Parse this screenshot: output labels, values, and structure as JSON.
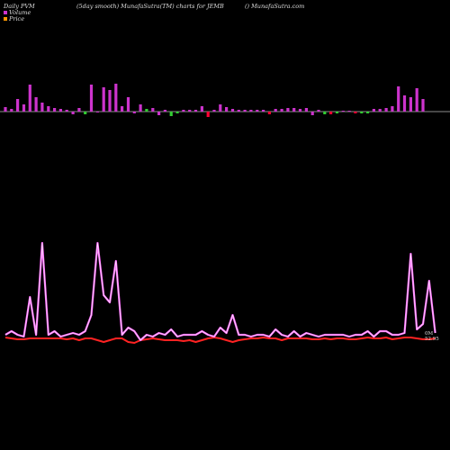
{
  "header": {
    "left": "Daily PVM",
    "middle": "(5day smooth) MunafaSutra(TM) charts for JEMB",
    "right": "() MunafaSutra.com"
  },
  "legend": {
    "volume": "Volume",
    "price": "Price"
  },
  "colors": {
    "background": "#000000",
    "volume_bar": "#cc33cc",
    "negative_bar": "#ff0033",
    "green_bar": "#33cc33",
    "pvm_line": "#ff66ff",
    "price_line": "#ff2222",
    "baseline": "#bbbbbb"
  },
  "chart_data": {
    "type": "bar+line",
    "bars": [
      {
        "v": 5,
        "c": "m"
      },
      {
        "v": 3,
        "c": "m"
      },
      {
        "v": 14,
        "c": "m"
      },
      {
        "v": 8,
        "c": "m"
      },
      {
        "v": 30,
        "c": "m"
      },
      {
        "v": 16,
        "c": "m"
      },
      {
        "v": 10,
        "c": "m"
      },
      {
        "v": 6,
        "c": "m"
      },
      {
        "v": 4,
        "c": "m"
      },
      {
        "v": 3,
        "c": "m"
      },
      {
        "v": 2,
        "c": "m"
      },
      {
        "v": -3,
        "c": "m"
      },
      {
        "v": 4,
        "c": "m"
      },
      {
        "v": -3,
        "c": "g"
      },
      {
        "v": 30,
        "c": "m"
      },
      {
        "v": -1,
        "c": "m"
      },
      {
        "v": 27,
        "c": "m"
      },
      {
        "v": 24,
        "c": "m"
      },
      {
        "v": 31,
        "c": "m"
      },
      {
        "v": 6,
        "c": "m"
      },
      {
        "v": 16,
        "c": "m"
      },
      {
        "v": -2,
        "c": "m"
      },
      {
        "v": 8,
        "c": "m"
      },
      {
        "v": 3,
        "c": "g"
      },
      {
        "v": 4,
        "c": "m"
      },
      {
        "v": -4,
        "c": "m"
      },
      {
        "v": 2,
        "c": "m"
      },
      {
        "v": -5,
        "c": "g"
      },
      {
        "v": -2,
        "c": "g"
      },
      {
        "v": 2,
        "c": "m"
      },
      {
        "v": 2,
        "c": "m"
      },
      {
        "v": 2,
        "c": "m"
      },
      {
        "v": 6,
        "c": "m"
      },
      {
        "v": -6,
        "c": "r"
      },
      {
        "v": 2,
        "c": "m"
      },
      {
        "v": 8,
        "c": "m"
      },
      {
        "v": 5,
        "c": "m"
      },
      {
        "v": 3,
        "c": "m"
      },
      {
        "v": 2,
        "c": "m"
      },
      {
        "v": 2,
        "c": "m"
      },
      {
        "v": 2,
        "c": "m"
      },
      {
        "v": 2,
        "c": "m"
      },
      {
        "v": 2,
        "c": "m"
      },
      {
        "v": -3,
        "c": "r"
      },
      {
        "v": 3,
        "c": "m"
      },
      {
        "v": 3,
        "c": "m"
      },
      {
        "v": 4,
        "c": "m"
      },
      {
        "v": 4,
        "c": "m"
      },
      {
        "v": 3,
        "c": "m"
      },
      {
        "v": 4,
        "c": "m"
      },
      {
        "v": -4,
        "c": "m"
      },
      {
        "v": 2,
        "c": "m"
      },
      {
        "v": -3,
        "c": "g"
      },
      {
        "v": -3,
        "c": "r"
      },
      {
        "v": -2,
        "c": "g"
      },
      {
        "v": 1,
        "c": "m"
      },
      {
        "v": 1,
        "c": "m"
      },
      {
        "v": -2,
        "c": "r"
      },
      {
        "v": -2,
        "c": "g"
      },
      {
        "v": -2,
        "c": "g"
      },
      {
        "v": 3,
        "c": "m"
      },
      {
        "v": 3,
        "c": "m"
      },
      {
        "v": 4,
        "c": "m"
      },
      {
        "v": 6,
        "c": "m"
      },
      {
        "v": 28,
        "c": "m"
      },
      {
        "v": 18,
        "c": "m"
      },
      {
        "v": 16,
        "c": "m"
      },
      {
        "v": 26,
        "c": "m"
      },
      {
        "v": 14,
        "c": "m"
      }
    ],
    "pvm_line": [
      372,
      368,
      372,
      374,
      330,
      372,
      270,
      372,
      368,
      374,
      372,
      370,
      372,
      368,
      350,
      270,
      328,
      336,
      290,
      372,
      364,
      368,
      378,
      372,
      374,
      370,
      372,
      366,
      374,
      372,
      372,
      372,
      368,
      372,
      374,
      364,
      370,
      350,
      372,
      372,
      374,
      372,
      372,
      374,
      366,
      372,
      374,
      368,
      374,
      370,
      372,
      374,
      372,
      372,
      372,
      372,
      374,
      372,
      372,
      368,
      374,
      368,
      368,
      372,
      372,
      370,
      282,
      366,
      360,
      312,
      370
    ],
    "price_line": [
      375,
      376,
      377,
      377,
      376,
      376,
      376,
      376,
      376,
      376,
      377,
      376,
      378,
      376,
      376,
      378,
      380,
      378,
      376,
      376,
      380,
      381,
      378,
      377,
      376,
      377,
      378,
      378,
      378,
      379,
      378,
      380,
      378,
      376,
      375,
      376,
      378,
      380,
      378,
      377,
      376,
      376,
      375,
      376,
      376,
      378,
      376,
      376,
      376,
      376,
      377,
      377,
      376,
      377,
      376,
      376,
      377,
      377,
      376,
      375,
      376,
      376,
      375,
      377,
      376,
      375,
      375,
      376,
      377,
      377,
      376
    ],
    "end_labels": [
      "0M",
      "52.95"
    ]
  }
}
